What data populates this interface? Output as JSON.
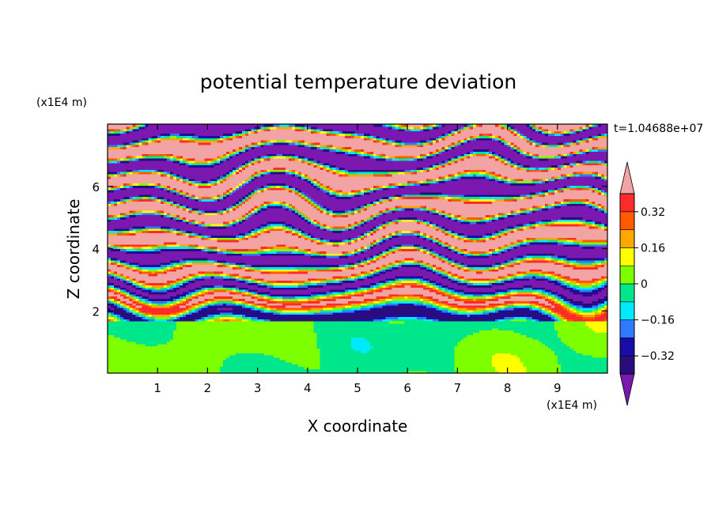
{
  "chart_data": {
    "type": "heatmap",
    "title": "potential temperature deviation",
    "xlabel": "X coordinate",
    "ylabel": "Z coordinate",
    "x_unit_label": "(x1E4 m)",
    "y_unit_label": "(x1E4 m)",
    "time_label": "t=1.04688e+07",
    "xlim": [
      0,
      10
    ],
    "ylim": [
      0,
      8
    ],
    "x_ticks": [
      "1",
      "2",
      "3",
      "4",
      "5",
      "6",
      "7",
      "8",
      "9"
    ],
    "y_ticks": [
      "2",
      "4",
      "6"
    ],
    "colorbar": {
      "levels": [
        -0.4,
        -0.32,
        -0.24,
        -0.16,
        -0.08,
        0,
        0.08,
        0.16,
        0.24,
        0.32,
        0.4
      ],
      "labels": [
        "0.32",
        "0.16",
        "0",
        "−0.16",
        "−0.32"
      ],
      "label_values": [
        0.32,
        0.16,
        0,
        -0.16,
        -0.32
      ],
      "colors": [
        "#2a0c7a",
        "#1a0ca8",
        "#2f7bff",
        "#00eaff",
        "#00e68a",
        "#7dff00",
        "#ffff00",
        "#ffa600",
        "#ff5a00",
        "#ff2a2a"
      ],
      "under_color": "#7a18b0",
      "over_color": "#f2a4a4"
    },
    "regions": [
      {
        "z_range": [
          0,
          1.65
        ],
        "description": "near-zero deviation, mixed values between -0.08 and 0.08"
      },
      {
        "z_range": [
          1.65,
          5
        ],
        "description": "turbulent layered structure spanning full color range"
      },
      {
        "z_range": [
          5,
          8
        ],
        "description": "alternating strong positive (>0.4) and negative (<-0.4) layers"
      }
    ]
  }
}
